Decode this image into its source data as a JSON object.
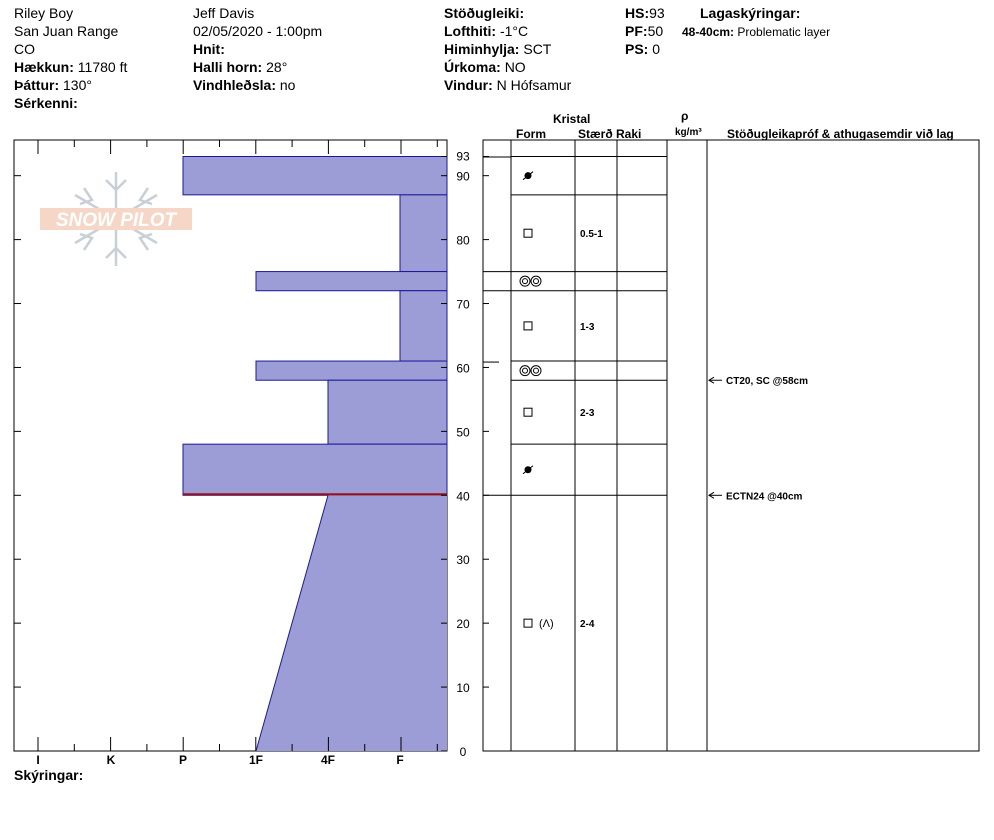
{
  "header": {
    "col1": [
      "Riley Boy",
      "San Juan Range",
      "CO"
    ],
    "elevation_label": "Hækkun:",
    "elevation_value": "11780 ft",
    "aspect_label": "Þáttur:",
    "aspect_value": "130°",
    "features_label": "Sérkenni:",
    "observer": "Jeff Davis",
    "datetime": "02/05/2020 - 1:00pm",
    "coords_label": "Hnit:",
    "slope_label": "Halli horn:",
    "slope_value": "28°",
    "wind_loading_label": "Vindhleðsla:",
    "wind_loading_value": "no",
    "stability_label": "Stöðugleiki:",
    "air_temp_label": "Lofthiti:",
    "air_temp_value": "-1°C",
    "sky_label": "Himinhylja:",
    "sky_value": "SCT",
    "precip_label": "Úrkoma:",
    "precip_value": "NO",
    "wind_label": "Vindur:",
    "wind_value": "N Hófsamur",
    "hs_label": "HS:",
    "hs_value": "93",
    "pf_label": "PF:",
    "pf_value": "50",
    "ps_label": "PS:",
    "ps_value": "0",
    "legend_title": "Lagaskýringar:",
    "legend_range": "48-40cm:",
    "legend_text": "Problematic layer"
  },
  "logo_text": "SNOW PILOT",
  "legend_footer": "Skýringar:",
  "table_headers": {
    "crystal": "Kristal",
    "form": "Form",
    "size": "Stærð",
    "moisture": "Raki",
    "rho": "ρ",
    "density_unit": "kg/m³",
    "tests": "Stöðugleikapróf & athugasemdir við lag"
  },
  "colors": {
    "fill": "#9c9cd6",
    "outline": "#1a1a99",
    "problem_line": "#a01010"
  },
  "chart_data": {
    "type": "bar",
    "hs": 93,
    "y_ticks": [
      0,
      10,
      20,
      30,
      40,
      50,
      60,
      70,
      80,
      90,
      93
    ],
    "hardness_scale": [
      "I",
      "K",
      "P",
      "1F",
      "4F",
      "F"
    ],
    "hardness_profile": [
      {
        "top": 93,
        "bottom": 87,
        "hardness": "P"
      },
      {
        "top": 87,
        "bottom": 75,
        "hardness": "F-"
      },
      {
        "top": 75,
        "bottom": 72,
        "hardness": "1F"
      },
      {
        "top": 72,
        "bottom": 61,
        "hardness": "F-"
      },
      {
        "top": 61,
        "bottom": 58,
        "hardness": "1F"
      },
      {
        "top": 58,
        "bottom": 48,
        "hardness": "4F"
      },
      {
        "top": 48,
        "bottom": 40,
        "hardness": "P"
      },
      {
        "top": 40,
        "bottom": 0,
        "hardness": "4F to 1F"
      }
    ],
    "problem_layer": {
      "top": 48,
      "bottom": 40
    },
    "layers": [
      {
        "top": 93,
        "bottom": 87,
        "grain": "melt-freeze-crust",
        "size": ""
      },
      {
        "top": 87,
        "bottom": 75,
        "grain": "faceted",
        "size": "0.5-1"
      },
      {
        "top": 75,
        "bottom": 72,
        "grain": "melt-forms",
        "size": ""
      },
      {
        "top": 72,
        "bottom": 61,
        "grain": "faceted",
        "size": "1-3"
      },
      {
        "top": 61,
        "bottom": 58,
        "grain": "melt-forms",
        "size": ""
      },
      {
        "top": 58,
        "bottom": 48,
        "grain": "faceted",
        "size": "2-3"
      },
      {
        "top": 48,
        "bottom": 40,
        "grain": "melt-freeze-crust",
        "size": ""
      },
      {
        "top": 40,
        "bottom": 0,
        "grain": "faceted-depth-hoar",
        "size": "2-4"
      }
    ],
    "tests": [
      {
        "depth": 58,
        "text": "CT20, SC @58cm"
      },
      {
        "depth": 40,
        "text": "ECTN24 @40cm"
      }
    ]
  }
}
